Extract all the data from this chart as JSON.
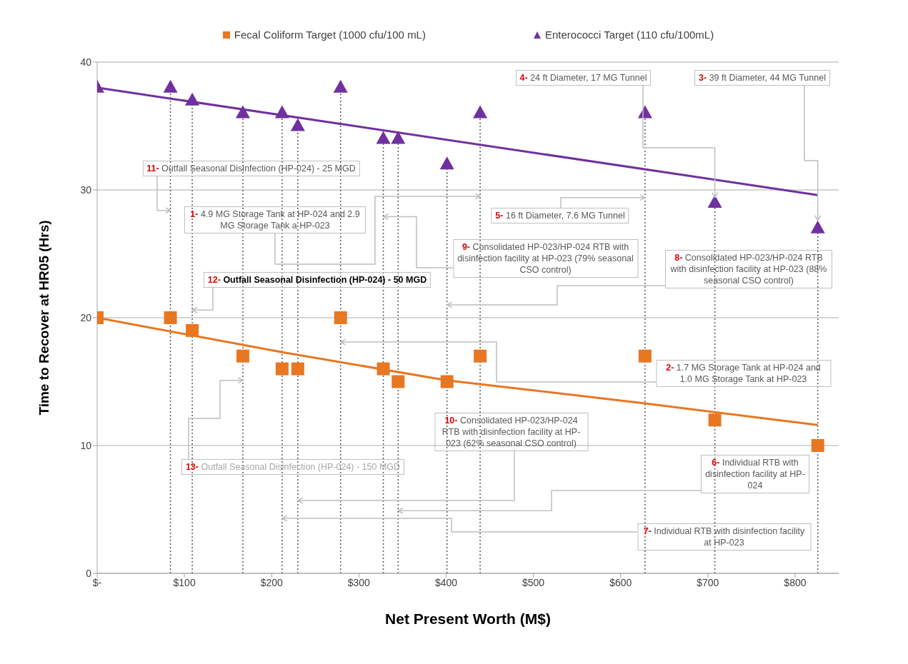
{
  "chart_data": {
    "type": "scatter",
    "xlabel": "Net Present Worth (M$)",
    "ylabel": "Time to Recover at HR05 (Hrs)",
    "x": [
      0,
      84,
      109,
      167,
      212,
      230,
      279,
      328,
      345,
      401,
      439,
      628,
      708,
      826
    ],
    "series": [
      {
        "name": "Fecal Coliform Target (1000 cfu/100 mL)",
        "marker": "square",
        "color": "#e87722",
        "values": [
          20,
          20,
          19,
          17,
          16,
          16,
          20,
          16,
          15,
          15,
          17,
          17,
          12,
          10
        ]
      },
      {
        "name": "Enterococci Target (110 cfu/100mL)",
        "marker": "triangle",
        "color": "#7030a0",
        "values": [
          38,
          38,
          37,
          36,
          36,
          35,
          38,
          34,
          34,
          32,
          36,
          36,
          29,
          27
        ]
      },
      {
        "type": "line",
        "marker": "none",
        "color": "#e87722",
        "x": [
          0,
          212,
          401,
          628,
          826
        ],
        "values": [
          20,
          17.3,
          15.1,
          13.3,
          11.6
        ]
      },
      {
        "type": "line",
        "marker": "none",
        "color": "#7030a0",
        "x": [
          0,
          826
        ],
        "values": [
          38,
          29.6
        ]
      }
    ],
    "xlim": [
      0,
      850
    ],
    "xticks": [
      {
        "value": 0,
        "label": "$-"
      },
      {
        "value": 100,
        "label": "$100"
      },
      {
        "value": 200,
        "label": "$200"
      },
      {
        "value": 300,
        "label": "$300"
      },
      {
        "value": 400,
        "label": "$400"
      },
      {
        "value": 500,
        "label": "$500"
      },
      {
        "value": 600,
        "label": "$600"
      },
      {
        "value": 700,
        "label": "$700"
      },
      {
        "value": 800,
        "label": "$800"
      }
    ],
    "ylim": [
      0,
      40
    ],
    "yticks": [
      0,
      10,
      20,
      30,
      40
    ],
    "grid": "y",
    "legend": "top",
    "ref_lines": [
      {
        "axis": "x",
        "value": 84,
        "line_style": "dotted",
        "color": "#595959"
      },
      {
        "axis": "x",
        "value": 109,
        "line_style": "dotted",
        "color": "#595959"
      },
      {
        "axis": "x",
        "value": 167,
        "line_style": "dotted",
        "color": "#595959"
      },
      {
        "axis": "x",
        "value": 212,
        "line_style": "dotted",
        "color": "#595959"
      },
      {
        "axis": "x",
        "value": 230,
        "line_style": "dotted",
        "color": "#595959"
      },
      {
        "axis": "x",
        "value": 279,
        "line_style": "dotted",
        "color": "#595959"
      },
      {
        "axis": "x",
        "value": 328,
        "line_style": "dotted",
        "color": "#595959"
      },
      {
        "axis": "x",
        "value": 345,
        "line_style": "dotted",
        "color": "#595959"
      },
      {
        "axis": "x",
        "value": 401,
        "line_style": "dotted",
        "color": "#595959"
      },
      {
        "axis": "x",
        "value": 439,
        "line_style": "dotted",
        "color": "#595959"
      },
      {
        "axis": "x",
        "value": 628,
        "line_style": "dotted",
        "color": "#595959"
      },
      {
        "axis": "x",
        "value": 708,
        "line_style": "dotted",
        "color": "#595959"
      },
      {
        "axis": "x",
        "value": 826,
        "line_style": "dotted",
        "color": "#595959"
      }
    ],
    "annotations": [
      {
        "text": "11- Outfall Seasonal Disinfection (HP-024) - 25 MGD",
        "x": 84,
        "y": 28.4
      },
      {
        "text": "1- 4.9 MG Storage Tank at HP-024 and 2.9 MG Storage Tank a HP-023",
        "x": 439,
        "y": 29.5
      },
      {
        "text": "4- 24 ft Diameter, 17 MG Tunnel",
        "x": 708,
        "y": 29.4
      },
      {
        "text": "3- 39 ft Diameter, 44 MG Tunnel",
        "x": 826,
        "y": 27.6
      },
      {
        "text": "5- 16 ft Diameter, 7.6 MG Tunnel",
        "x": 628,
        "y": 29.4
      },
      {
        "text": "9- Consolidated HP-023/HP-024 RTB with disinfection facility at HP-023 (79% seasonal CSO control)",
        "x": 328,
        "y": 27.9
      },
      {
        "text": "12- Outfall Seasonal Disinfection (HP-024) - 50 MGD",
        "x": 109,
        "y": 20.6
      },
      {
        "text": "8- Consolidated HP-023/HP-024 RTB with disinfection facility at HP-023 (88% seasonal CSO control)",
        "x": 401,
        "y": 21.0
      },
      {
        "text": "2- 1.7 MG Storage Tank at HP-024 and 1.0 MG Storage Tank at HP-023",
        "x": 279,
        "y": 18.1
      },
      {
        "text": "10- Consolidated HP-023/HP-024 RTB with disinfection facility at HP-023 (62% seasonal CSO control)",
        "x": 230,
        "y": 5.7
      },
      {
        "text": "13- Outfall Seasonal Disinfection (HP-024) - 150 MGD",
        "x": 167,
        "y": 15.1
      },
      {
        "text": "6- Individual RTB with disinfection facility at HP-024",
        "x": 345,
        "y": 4.9
      },
      {
        "text": "7- Individual RTB with disinfection facility at HP-023",
        "x": 212,
        "y": 4.3
      }
    ]
  }
}
